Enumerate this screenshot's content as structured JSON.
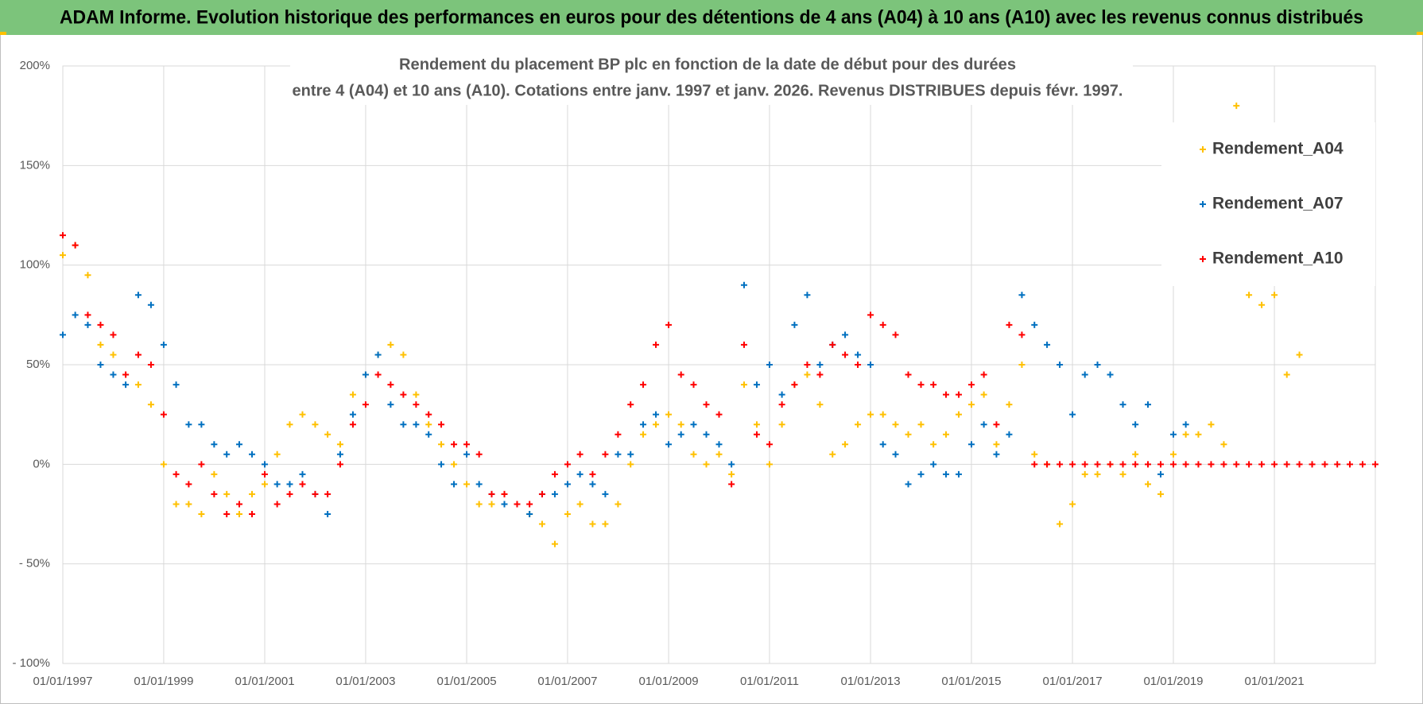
{
  "header": {
    "title": "ADAM Informe. Evolution historique des performances en euros pour des détentions de 4 ans (A04) à 10 ans (A10) avec les revenus connus distribués"
  },
  "chart_data": {
    "type": "scatter",
    "title": [
      "Rendement du placement BP plc en fonction de la date de début pour des durées",
      "entre 4 (A04) et 10 ans (A10). Cotations entre janv. 1997 et janv. 2026. Revenus DISTRIBUES depuis févr. 1997."
    ],
    "x": [
      "1997-01-01",
      "1997-04-01",
      "1997-07-01",
      "1997-10-01",
      "1998-01-01",
      "1998-04-01",
      "1998-07-01",
      "1998-10-01",
      "1999-01-01",
      "1999-04-01",
      "1999-07-01",
      "1999-10-01",
      "2000-01-01",
      "2000-04-01",
      "2000-07-01",
      "2000-10-01",
      "2001-01-01",
      "2001-04-01",
      "2001-07-01",
      "2001-10-01",
      "2002-01-01",
      "2002-04-01",
      "2002-07-01",
      "2002-10-01",
      "2003-01-01",
      "2003-04-01",
      "2003-07-01",
      "2003-10-01",
      "2004-01-01",
      "2004-04-01",
      "2004-07-01",
      "2004-10-01",
      "2005-01-01",
      "2005-04-01",
      "2005-07-01",
      "2005-10-01",
      "2006-01-01",
      "2006-04-01",
      "2006-07-01",
      "2006-10-01",
      "2007-01-01",
      "2007-04-01",
      "2007-07-01",
      "2007-10-01",
      "2008-01-01",
      "2008-04-01",
      "2008-07-01",
      "2008-10-01",
      "2009-01-01",
      "2009-04-01",
      "2009-07-01",
      "2009-10-01",
      "2010-01-01",
      "2010-04-01",
      "2010-07-01",
      "2010-10-01",
      "2011-01-01",
      "2011-04-01",
      "2011-07-01",
      "2011-10-01",
      "2012-01-01",
      "2012-04-01",
      "2012-07-01",
      "2012-10-01",
      "2013-01-01",
      "2013-04-01",
      "2013-07-01",
      "2013-10-01",
      "2014-01-01",
      "2014-04-01",
      "2014-07-01",
      "2014-10-01",
      "2015-01-01",
      "2015-04-01",
      "2015-07-01",
      "2015-10-01",
      "2016-01-01",
      "2016-04-01",
      "2016-07-01",
      "2016-10-01",
      "2017-01-01",
      "2017-04-01",
      "2017-07-01",
      "2017-10-01",
      "2018-01-01",
      "2018-04-01",
      "2018-07-01",
      "2018-10-01",
      "2019-01-01",
      "2019-04-01",
      "2019-07-01",
      "2019-10-01",
      "2020-01-01",
      "2020-04-01",
      "2020-07-01",
      "2020-10-01",
      "2021-01-01",
      "2021-04-01",
      "2021-07-01",
      "2021-10-01",
      "2022-01-01",
      "2022-04-01",
      "2022-07-01",
      "2022-10-01",
      "2023-01-01"
    ],
    "series": [
      {
        "name": "Rendement_A04",
        "color": "#ffc000",
        "values": [
          105,
          110,
          95,
          60,
          55,
          45,
          40,
          30,
          0,
          -20,
          -20,
          -25,
          -5,
          -15,
          -25,
          -15,
          -10,
          5,
          20,
          25,
          20,
          15,
          10,
          35,
          45,
          55,
          60,
          55,
          35,
          20,
          10,
          0,
          -10,
          -20,
          -20,
          -15,
          -20,
          -25,
          -30,
          -40,
          -25,
          -20,
          -30,
          -30,
          -20,
          0,
          15,
          20,
          25,
          20,
          5,
          0,
          5,
          -5,
          40,
          20,
          0,
          20,
          40,
          45,
          30,
          5,
          10,
          20,
          25,
          25,
          20,
          15,
          20,
          10,
          15,
          25,
          30,
          35,
          10,
          30,
          50,
          5,
          0,
          -30,
          -20,
          -5,
          -5,
          0,
          -5,
          5,
          -10,
          -15,
          5,
          15,
          15,
          20,
          10,
          180,
          85,
          80,
          85,
          45,
          55,
          null,
          null,
          null,
          null,
          null,
          null
        ]
      },
      {
        "name": "Rendement_A07",
        "color": "#0070c0",
        "values": [
          65,
          75,
          70,
          50,
          45,
          40,
          85,
          80,
          60,
          40,
          20,
          20,
          10,
          5,
          10,
          5,
          0,
          -10,
          -10,
          -5,
          -15,
          -25,
          5,
          25,
          45,
          55,
          30,
          20,
          20,
          15,
          0,
          -10,
          5,
          -10,
          -15,
          -20,
          -20,
          -25,
          -15,
          -15,
          -10,
          -5,
          -10,
          -15,
          5,
          5,
          20,
          25,
          10,
          15,
          20,
          15,
          10,
          0,
          90,
          40,
          50,
          35,
          70,
          85,
          50,
          60,
          65,
          55,
          50,
          10,
          5,
          -10,
          -5,
          0,
          -5,
          -5,
          10,
          20,
          5,
          15,
          85,
          70,
          60,
          50,
          25,
          45,
          50,
          45,
          30,
          20,
          30,
          -5,
          15,
          20,
          null,
          null,
          null,
          null,
          null,
          null,
          null,
          null,
          null,
          null,
          null,
          null,
          null,
          null,
          null
        ]
      },
      {
        "name": "Rendement_A10",
        "color": "#ff0000",
        "values": [
          115,
          110,
          75,
          70,
          65,
          45,
          55,
          50,
          25,
          -5,
          -10,
          0,
          -15,
          -25,
          -20,
          -25,
          -5,
          -20,
          -15,
          -10,
          -15,
          -15,
          0,
          20,
          30,
          45,
          40,
          35,
          30,
          25,
          20,
          10,
          10,
          5,
          -15,
          -15,
          -20,
          -20,
          -15,
          -5,
          0,
          5,
          -5,
          5,
          15,
          30,
          40,
          60,
          70,
          45,
          40,
          30,
          25,
          -10,
          60,
          15,
          10,
          30,
          40,
          50,
          45,
          60,
          55,
          50,
          75,
          70,
          65,
          45,
          40,
          40,
          35,
          35,
          40,
          45,
          20,
          70,
          65,
          0,
          0,
          0,
          0,
          0,
          0,
          0,
          0,
          0,
          0,
          0,
          0,
          0,
          0,
          0,
          0,
          0,
          0,
          0,
          0,
          0,
          0,
          0,
          0,
          0,
          0,
          0,
          0
        ]
      }
    ],
    "xlim": [
      "1997-01-01",
      "2023-01-01"
    ],
    "xticks": [
      {
        "value": "1997-01-01",
        "label": "01/01/1997"
      },
      {
        "value": "1999-01-01",
        "label": "01/01/1999"
      },
      {
        "value": "2001-01-01",
        "label": "01/01/2001"
      },
      {
        "value": "2003-01-01",
        "label": "01/01/2003"
      },
      {
        "value": "2005-01-01",
        "label": "01/01/2005"
      },
      {
        "value": "2007-01-01",
        "label": "01/01/2007"
      },
      {
        "value": "2009-01-01",
        "label": "01/01/2009"
      },
      {
        "value": "2011-01-01",
        "label": "01/01/2011"
      },
      {
        "value": "2013-01-01",
        "label": "01/01/2013"
      },
      {
        "value": "2015-01-01",
        "label": "01/01/2015"
      },
      {
        "value": "2017-01-01",
        "label": "01/01/2017"
      },
      {
        "value": "2019-01-01",
        "label": "01/01/2019"
      },
      {
        "value": "2021-01-01",
        "label": "01/01/2021"
      }
    ],
    "ylim": [
      -100,
      200
    ],
    "yticks": [
      {
        "value": -100,
        "label": "- 100%"
      },
      {
        "value": -50,
        "label": "- 50%"
      },
      {
        "value": 0,
        "label": "0%"
      },
      {
        "value": 50,
        "label": "50%"
      },
      {
        "value": 100,
        "label": "100%"
      },
      {
        "value": 150,
        "label": "150%"
      },
      {
        "value": 200,
        "label": "200%"
      }
    ],
    "grid": true,
    "legend": "upper right"
  }
}
